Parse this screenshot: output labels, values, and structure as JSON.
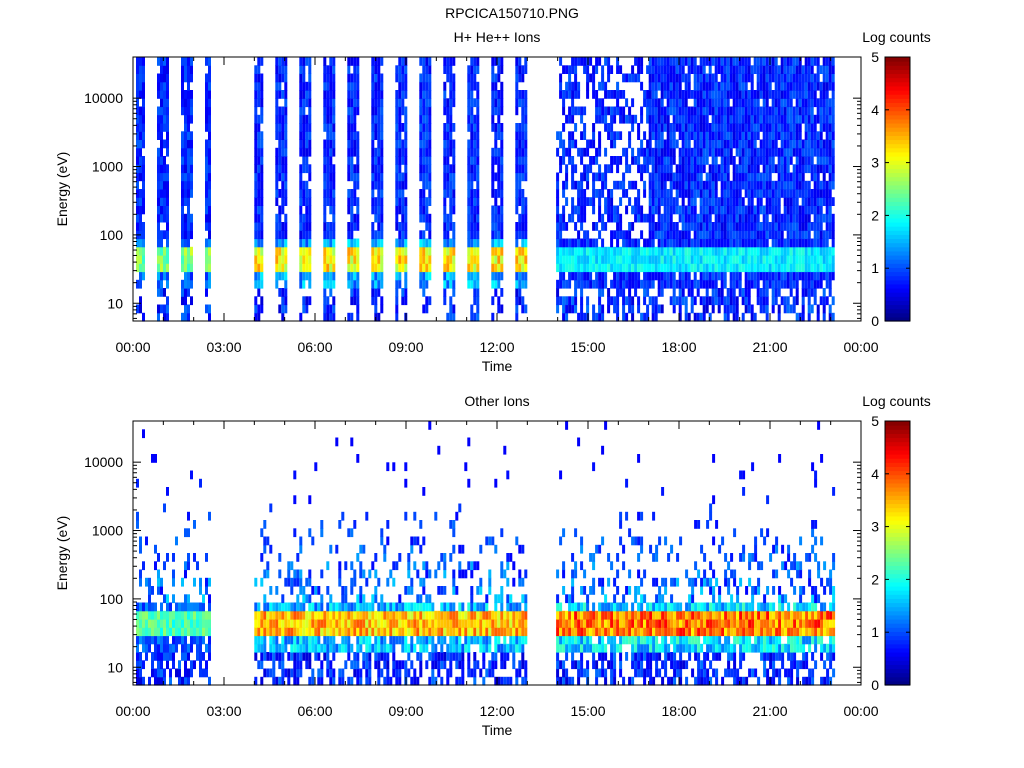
{
  "page": {
    "title": "RPCICA150710.PNG"
  },
  "chart_data": [
    {
      "type": "heatmap",
      "title": "H+ He++ Ions",
      "xlabel": "Time",
      "ylabel": "Energy (eV)",
      "x_ticks": [
        "00:00",
        "03:00",
        "06:00",
        "09:00",
        "12:00",
        "15:00",
        "18:00",
        "21:00",
        "00:00"
      ],
      "xlim_hours": [
        0,
        24
      ],
      "y_scale": "log",
      "ylim": [
        5.5,
        40000
      ],
      "y_ticks": [
        {
          "value": 10,
          "label": "10"
        },
        {
          "value": 100,
          "label": "100"
        },
        {
          "value": 1000,
          "label": "1000"
        },
        {
          "value": 10000,
          "label": "10000"
        }
      ],
      "colorbar": {
        "label": "Log counts",
        "range": [
          0,
          5
        ],
        "ticks": [
          "0",
          "1",
          "2",
          "3",
          "4",
          "5"
        ],
        "colormap": [
          "#00007f",
          "#0000ff",
          "#007fff",
          "#00ffff",
          "#7fff7f",
          "#ffff00",
          "#ff7f00",
          "#ff0000",
          "#7f0000"
        ]
      },
      "data_gaps_hours": [
        [
          2.55,
          4.0
        ],
        [
          12.95,
          13.95
        ],
        [
          23.1,
          24.0
        ]
      ],
      "activity_segments": [
        {
          "start": 0.1,
          "end": 2.55,
          "pattern": "sparse vertical stripes",
          "peak_energy_eV": 40,
          "peak_log_counts": 2.8
        },
        {
          "start": 4.0,
          "end": 12.95,
          "pattern": "sparse vertical stripes",
          "peak_energy_eV": 40,
          "peak_log_counts": 3.5
        },
        {
          "start": 13.95,
          "end": 17.0,
          "pattern": "noisy",
          "peak_energy_eV": 40,
          "peak_log_counts": 2.0
        },
        {
          "start": 17.0,
          "end": 23.1,
          "pattern": "continuous",
          "peak_energy_eV": 40,
          "peak_log_counts": 2.0,
          "background_log_counts": 0.8
        }
      ]
    },
    {
      "type": "heatmap",
      "title": "Other Ions",
      "xlabel": "Time",
      "ylabel": "Energy (eV)",
      "x_ticks": [
        "00:00",
        "03:00",
        "06:00",
        "09:00",
        "12:00",
        "15:00",
        "18:00",
        "21:00",
        "00:00"
      ],
      "xlim_hours": [
        0,
        24
      ],
      "y_scale": "log",
      "ylim": [
        5.5,
        40000
      ],
      "y_ticks": [
        {
          "value": 10,
          "label": "10"
        },
        {
          "value": 100,
          "label": "100"
        },
        {
          "value": 1000,
          "label": "1000"
        },
        {
          "value": 10000,
          "label": "10000"
        }
      ],
      "colorbar": {
        "label": "Log counts",
        "range": [
          0,
          5
        ],
        "ticks": [
          "0",
          "1",
          "2",
          "3",
          "4",
          "5"
        ],
        "colormap": [
          "#00007f",
          "#0000ff",
          "#007fff",
          "#00ffff",
          "#7fff7f",
          "#ffff00",
          "#ff7f00",
          "#ff0000",
          "#7f0000"
        ]
      },
      "data_gaps_hours": [
        [
          2.55,
          4.0
        ],
        [
          12.95,
          13.95
        ],
        [
          23.1,
          24.0
        ]
      ],
      "activity_segments": [
        {
          "start": 0.1,
          "end": 2.55,
          "pattern": "band",
          "peak_energy_eV": 40,
          "peak_log_counts": 2.5
        },
        {
          "start": 4.0,
          "end": 12.95,
          "pattern": "band",
          "peak_energy_eV": 40,
          "peak_log_counts": 3.8
        },
        {
          "start": 13.95,
          "end": 23.1,
          "pattern": "band",
          "peak_energy_eV": 40,
          "peak_log_counts": 4.2
        }
      ]
    }
  ]
}
